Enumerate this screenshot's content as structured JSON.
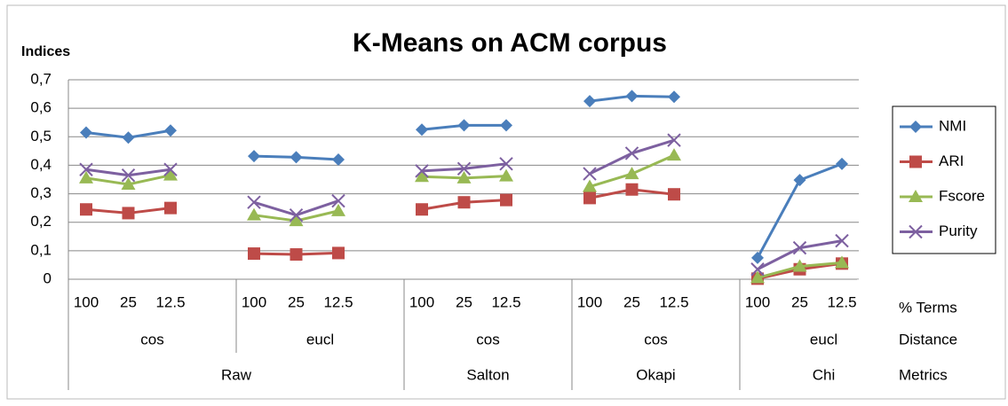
{
  "chart_data": {
    "type": "line",
    "title": "K-Means on ACM corpus",
    "y_label": "Indices",
    "row_labels": [
      "% Terms",
      "Distance",
      "Metrics"
    ],
    "categories": [
      "100",
      "25",
      "12.5",
      "100",
      "25",
      "12.5",
      "100",
      "25",
      "12.5",
      "100",
      "25",
      "12.5",
      "100",
      "25",
      "12.5"
    ],
    "distances": [
      "cos",
      "eucl",
      "cos",
      "cos",
      "eucl"
    ],
    "metrics": [
      "Raw",
      null,
      "Salton",
      "Okapi",
      "Chi"
    ],
    "series": [
      {
        "name": "NMI",
        "color": "#4a7ebb",
        "marker": "diamond",
        "values": [
          0.515,
          0.497,
          0.522,
          0.432,
          0.428,
          0.42,
          0.525,
          0.54,
          0.54,
          0.625,
          0.643,
          0.64,
          0.075,
          0.348,
          0.405
        ]
      },
      {
        "name": "ARI",
        "color": "#be4b48",
        "marker": "square",
        "values": [
          0.245,
          0.232,
          0.25,
          0.09,
          0.087,
          0.092,
          0.245,
          0.27,
          0.278,
          0.285,
          0.315,
          0.298,
          0.002,
          0.035,
          0.055
        ]
      },
      {
        "name": "Fscore",
        "color": "#98b954",
        "marker": "triangle",
        "values": [
          0.355,
          0.333,
          0.365,
          0.225,
          0.205,
          0.24,
          0.36,
          0.355,
          0.362,
          0.325,
          0.37,
          0.435,
          0.005,
          0.045,
          0.058
        ]
      },
      {
        "name": "Purity",
        "color": "#7d60a0",
        "marker": "x",
        "values": [
          0.385,
          0.365,
          0.385,
          0.27,
          0.225,
          0.275,
          0.38,
          0.388,
          0.405,
          0.37,
          0.442,
          0.488,
          0.035,
          0.11,
          0.135
        ]
      }
    ],
    "ylim": [
      0,
      0.7
    ],
    "yticks": [
      0,
      {
        "value": 0.1,
        "label": "0,1"
      },
      {
        "value": 0.2,
        "label": "0,2"
      },
      {
        "value": 0.3,
        "label": "0,3"
      },
      {
        "value": 0.4,
        "label": "0,4"
      },
      {
        "value": 0.5,
        "label": "0,5"
      },
      {
        "value": 0.6,
        "label": "0,6"
      },
      {
        "value": 0.7,
        "label": "0,7"
      }
    ],
    "grid": true,
    "legend": "right"
  }
}
